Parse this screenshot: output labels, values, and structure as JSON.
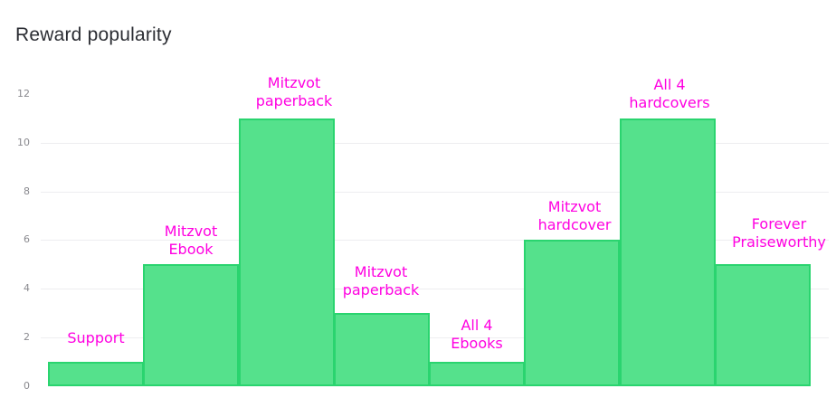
{
  "page": {
    "background": "#ffffff"
  },
  "chart_data": {
    "type": "bar",
    "title": "Reward popularity",
    "categories": [
      "Support",
      "Mitzvot Ebook",
      "Mitzvot paperback",
      "Mitzvot paperback",
      "All 4 Ebooks",
      "Mitzvot hardcover",
      "All 4 hardcovers",
      "Forever Praiseworthy"
    ],
    "values": [
      1,
      5,
      11,
      3,
      1,
      6,
      11,
      5
    ],
    "label_lines": [
      [
        "Support"
      ],
      [
        "Mitzvot",
        "Ebook"
      ],
      [
        "Mitzvot",
        "paperback"
      ],
      [
        "Mitzvot",
        "paperback"
      ],
      [
        "All 4",
        "Ebooks"
      ],
      [
        "Mitzvot",
        "hardcover"
      ],
      [
        "All 4",
        "hardcovers"
      ],
      [
        "Forever",
        "Praiseworthy"
      ]
    ],
    "xlabel": "",
    "ylabel": "",
    "ylim": [
      0,
      12
    ],
    "y_ticks": [
      0,
      2,
      4,
      6,
      8,
      10,
      12
    ],
    "gridline_values": [
      2,
      4,
      6,
      8,
      10
    ],
    "grid": "horizontal-only",
    "legend_position": "none",
    "bar_gap": 0,
    "colors": {
      "bar_fill": "#55e18c",
      "bar_border": "#2ad46f",
      "data_label": "#ff00e1",
      "gridline": "#eeeef0",
      "tick_label": "#8a8a8f",
      "title": "#2b2d33"
    }
  }
}
